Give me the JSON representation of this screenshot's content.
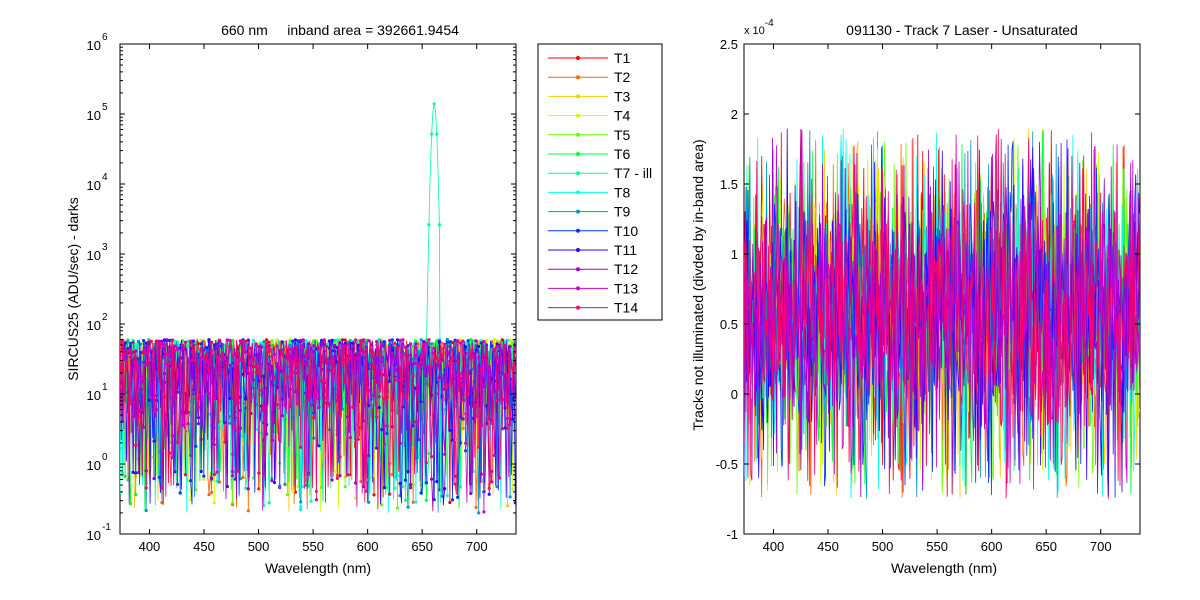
{
  "chart_data": [
    {
      "type": "line",
      "title": "660 nm     inband area = 392661.9454",
      "xlabel": "Wavelength (nm)",
      "ylabel": "SIRCUS25  (ADU/sec) - darks",
      "xlim": [
        373,
        736
      ],
      "ylim": [
        0.1,
        1000000
      ],
      "yscale": "log",
      "x_ticks": [
        400,
        450,
        500,
        550,
        600,
        650,
        700
      ],
      "y_ticks": [
        {
          "base": "10",
          "exp": "-1",
          "value": 0.1
        },
        {
          "base": "10",
          "exp": "0",
          "value": 1
        },
        {
          "base": "10",
          "exp": "1",
          "value": 10
        },
        {
          "base": "10",
          "exp": "2",
          "value": 100
        },
        {
          "base": "10",
          "exp": "3",
          "value": 1000
        },
        {
          "base": "10",
          "exp": "4",
          "value": 10000
        },
        {
          "base": "10",
          "exp": "5",
          "value": 100000
        },
        {
          "base": "10",
          "exp": "6",
          "value": 1000000
        }
      ],
      "markers": true,
      "noise_band": {
        "low": 0.2,
        "high": 60,
        "typical": 25
      },
      "peak": {
        "series": "T7 - ill",
        "x": 661,
        "y": 140000,
        "baseline": 60,
        "width_nm": 6
      },
      "grid": false,
      "legend": {
        "position": "outside-right",
        "entries": [
          "T1",
          "T2",
          "T3",
          "T4",
          "T5",
          "T6",
          "T7 - ill",
          "T8",
          "T9",
          "T10",
          "T11",
          "T12",
          "T13",
          "T14"
        ]
      }
    },
    {
      "type": "line",
      "title": "091130 - Track 7 Laser - Unsaturated",
      "xlabel": "Wavelength (nm)",
      "ylabel": "Tracks not illuminated (divded by in-band area)",
      "xlim": [
        373,
        736
      ],
      "ylim": [
        -1,
        2.5
      ],
      "y_multiplier": {
        "base": "x 10",
        "exp": "-4"
      },
      "x_ticks": [
        400,
        450,
        500,
        550,
        600,
        650,
        700
      ],
      "y_ticks": [
        "-1",
        "-0.5",
        "0",
        "0.5",
        "1",
        "1.5",
        "2",
        "2.5"
      ],
      "y_tick_values": [
        -1,
        -0.5,
        0,
        0.5,
        1,
        1.5,
        2,
        2.5
      ],
      "noise_band": {
        "low": -0.75,
        "high": 1.9,
        "typical": 0.6
      },
      "markers": false,
      "grid": false
    }
  ],
  "series_colors": [
    "#ff0000",
    "#ff6600",
    "#ffcc00",
    "#ccff00",
    "#66ff00",
    "#00ff33",
    "#00ff99",
    "#00ffee",
    "#0099cc",
    "#0033ff",
    "#3300ff",
    "#9900cc",
    "#cc00cc",
    "#ff0066"
  ]
}
